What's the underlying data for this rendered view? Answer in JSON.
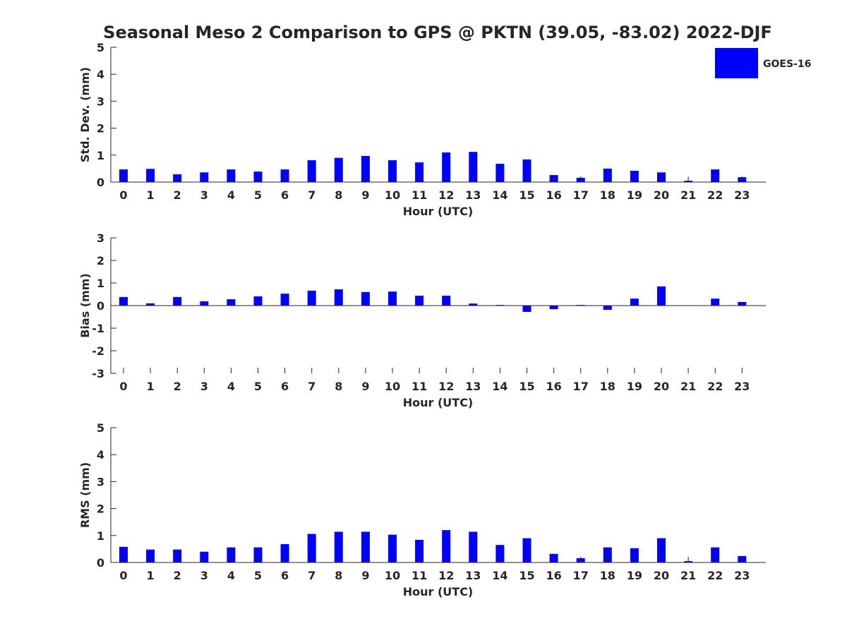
{
  "title": "Seasonal Meso 2 Comparison to GPS @ PKTN (39.05, -83.02) 2022-DJF",
  "legend": {
    "label": "GOES-16",
    "color": "#0000ff",
    "placement": "top-right"
  },
  "colors": {
    "bar": "#0000ff",
    "axis": "#262626"
  },
  "chart_data": [
    {
      "type": "bar",
      "title": "Seasonal Meso 2 Comparison to GPS @ PKTN (39.05, -83.02) 2022-DJF",
      "xlabel": "Hour (UTC)",
      "ylabel": "Std. Dev. (mm)",
      "ylim": [
        0,
        5
      ],
      "yticks": [
        "0",
        "1",
        "2",
        "3",
        "4",
        "5"
      ],
      "grid": false,
      "categories": [
        "0",
        "1",
        "2",
        "3",
        "4",
        "5",
        "6",
        "7",
        "8",
        "9",
        "10",
        "11",
        "12",
        "13",
        "14",
        "15",
        "16",
        "17",
        "18",
        "19",
        "20",
        "21",
        "22",
        "23"
      ],
      "series": [
        {
          "name": "GOES-16",
          "values": [
            0.47,
            0.49,
            0.29,
            0.36,
            0.47,
            0.39,
            0.47,
            0.81,
            0.9,
            0.97,
            0.81,
            0.73,
            1.1,
            1.12,
            0.68,
            0.84,
            0.26,
            0.16,
            0.5,
            0.42,
            0.36,
            0.05,
            0.47,
            0.18
          ]
        }
      ]
    },
    {
      "type": "bar",
      "xlabel": "Hour (UTC)",
      "ylabel": "Bias (mm)",
      "ylim": [
        -3,
        3
      ],
      "yticks": [
        "-3",
        "-2",
        "-1",
        "0",
        "1",
        "2",
        "3"
      ],
      "grid": false,
      "categories": [
        "0",
        "1",
        "2",
        "3",
        "4",
        "5",
        "6",
        "7",
        "8",
        "9",
        "10",
        "11",
        "12",
        "13",
        "14",
        "15",
        "16",
        "17",
        "18",
        "19",
        "20",
        "21",
        "22",
        "23"
      ],
      "series": [
        {
          "name": "GOES-16",
          "values": [
            0.38,
            0.1,
            0.38,
            0.19,
            0.28,
            0.41,
            0.53,
            0.66,
            0.72,
            0.6,
            0.62,
            0.44,
            0.44,
            0.09,
            0.03,
            -0.28,
            -0.16,
            0.03,
            -0.19,
            0.31,
            0.85,
            0.0,
            0.31,
            0.16
          ]
        }
      ]
    },
    {
      "type": "bar",
      "xlabel": "Hour (UTC)",
      "ylabel": "RMS (mm)",
      "ylim": [
        0,
        5
      ],
      "yticks": [
        "0",
        "1",
        "2",
        "3",
        "4",
        "5"
      ],
      "grid": false,
      "categories": [
        "0",
        "1",
        "2",
        "3",
        "4",
        "5",
        "6",
        "7",
        "8",
        "9",
        "10",
        "11",
        "12",
        "13",
        "14",
        "15",
        "16",
        "17",
        "18",
        "19",
        "20",
        "21",
        "22",
        "23"
      ],
      "series": [
        {
          "name": "GOES-16",
          "values": [
            0.58,
            0.48,
            0.48,
            0.4,
            0.56,
            0.56,
            0.68,
            1.06,
            1.14,
            1.14,
            1.03,
            0.84,
            1.2,
            1.14,
            0.65,
            0.9,
            0.32,
            0.16,
            0.56,
            0.53,
            0.9,
            0.05,
            0.56,
            0.24
          ]
        }
      ]
    }
  ]
}
